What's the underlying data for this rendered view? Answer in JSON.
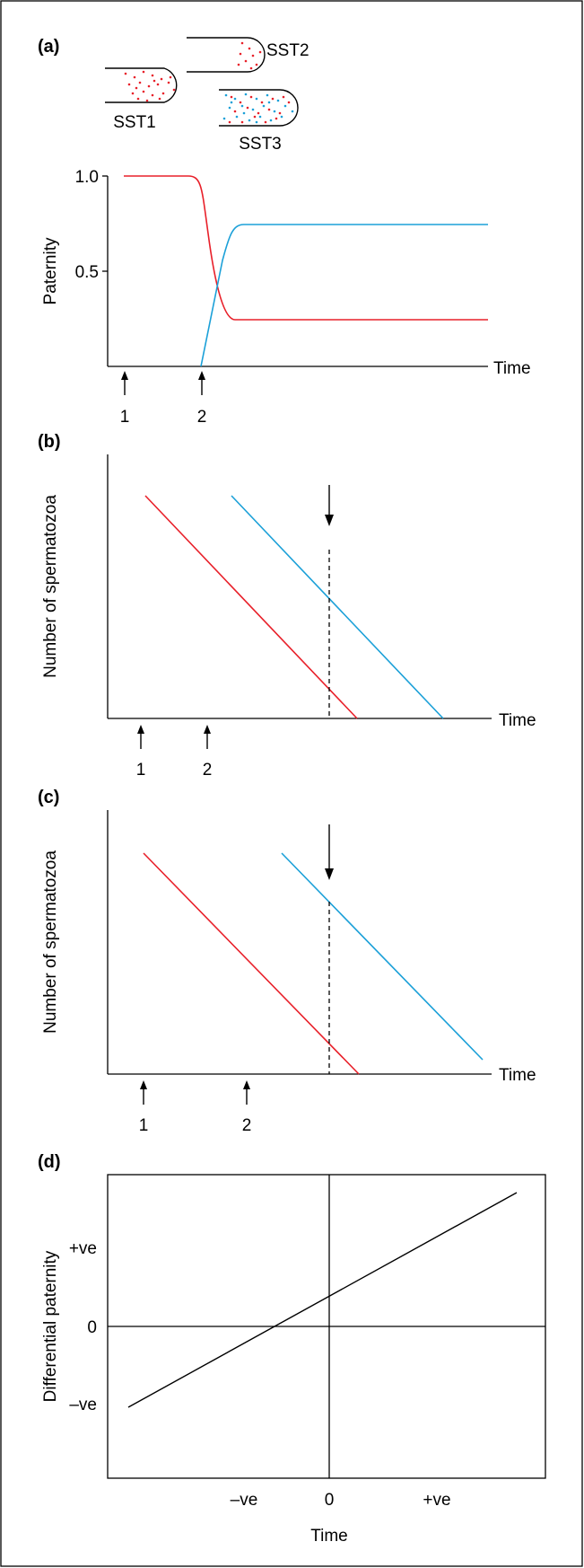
{
  "panels": {
    "a": {
      "label": "(a)",
      "tubes": [
        "SST1",
        "SST2",
        "SST3"
      ],
      "ylabel": "Paternity",
      "yticks": [
        "1.0",
        "0.5"
      ],
      "xlabel": "Time",
      "events": [
        "1",
        "2"
      ]
    },
    "b": {
      "label": "(b)",
      "ylabel": "Number of spermatozoa",
      "xlabel": "Time",
      "events": [
        "1",
        "2"
      ]
    },
    "c": {
      "label": "(c)",
      "ylabel": "Number of spermatozoa",
      "xlabel": "Time",
      "events": [
        "1",
        "2"
      ]
    },
    "d": {
      "label": "(d)",
      "ylabel": "Differential paternity",
      "yticks": [
        "+ve",
        "0",
        "–ve"
      ],
      "xticks": [
        "–ve",
        "0",
        "+ve"
      ],
      "xlabel": "Time"
    }
  },
  "colors": {
    "male1": "#e8202a",
    "male2": "#1ba0d8",
    "frame": "#000000"
  },
  "chart_data": [
    {
      "type": "line",
      "panel": "a",
      "ylabel": "Paternity",
      "xlabel": "Time",
      "ylim": [
        0,
        1.0
      ],
      "series": [
        {
          "x": [
            1,
            3.7,
            4.2,
            4.7,
            12
          ],
          "values": [
            1.0,
            1.0,
            0.97,
            0.25,
            0.25
          ]
        },
        {
          "x": [
            4.4,
            5.1,
            5.5,
            12
          ],
          "values": [
            0.0,
            0.65,
            0.75,
            0.75
          ]
        }
      ]
    },
    {
      "type": "line",
      "panel": "b",
      "ylabel": "Number of spermatozoa",
      "xlabel": "Time",
      "series": [
        {
          "x": [
            1.0,
            5.8
          ],
          "values": [
            10,
            0
          ]
        },
        {
          "x": [
            2.6,
            7.4
          ],
          "values": [
            10,
            0
          ]
        }
      ]
    },
    {
      "type": "line",
      "panel": "c",
      "ylabel": "Number of spermatozoa",
      "xlabel": "Time",
      "series": [
        {
          "x": [
            1.0,
            5.8
          ],
          "values": [
            10,
            0
          ]
        },
        {
          "x": [
            3.6,
            8.4
          ],
          "values": [
            10,
            0
          ]
        }
      ]
    },
    {
      "type": "line",
      "panel": "d",
      "ylabel": "Differential paternity",
      "xlabel": "Time",
      "xlim": [
        -2,
        2
      ],
      "ylim": [
        -2,
        2
      ],
      "series": [
        {
          "x": [
            -1.85,
            1.75
          ],
          "values": [
            -1.0,
            1.7
          ]
        }
      ]
    }
  ]
}
